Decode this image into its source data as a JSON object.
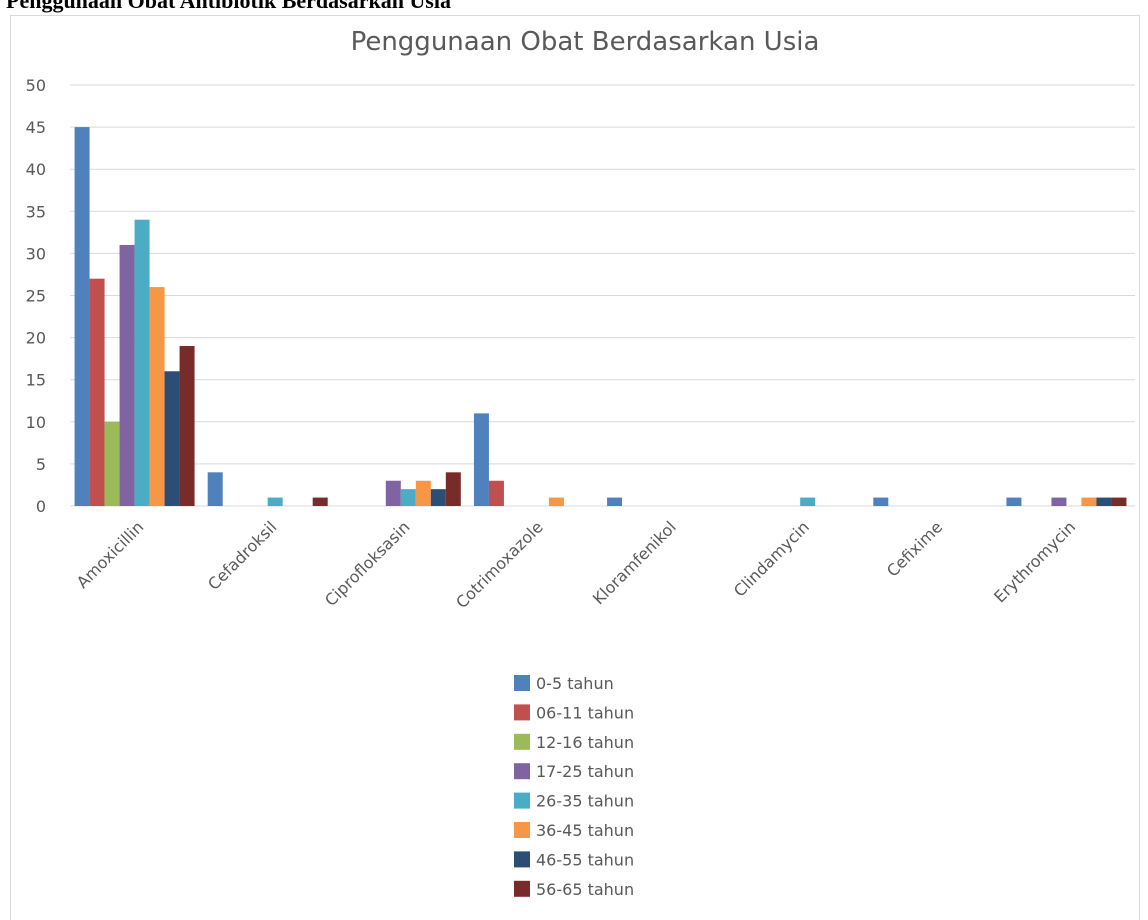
{
  "heading": "Penggunaan Obat Antibiotik Berdasarkan Usia",
  "chart_data": {
    "type": "bar",
    "title": "Penggunaan Obat Berdasarkan Usia",
    "categories": [
      "Amoxicillin",
      "Cefadroksil",
      "Ciprofloksasin",
      "Cotrimoxazole",
      "Kloramfenikol",
      "Clindamycin",
      "Cefixime",
      "Erythromycin"
    ],
    "series": [
      {
        "name": "0-5 tahun",
        "color": "#4f81bd",
        "values": [
          45,
          4,
          0,
          11,
          1,
          0,
          1,
          1
        ]
      },
      {
        "name": "06-11 tahun",
        "color": "#c0504d",
        "values": [
          27,
          0,
          0,
          3,
          0,
          0,
          0,
          0
        ]
      },
      {
        "name": "12-16 tahun",
        "color": "#9bbb59",
        "values": [
          10,
          0,
          0,
          0,
          0,
          0,
          0,
          0
        ]
      },
      {
        "name": "17-25 tahun",
        "color": "#8064a2",
        "values": [
          31,
          0,
          3,
          0,
          0,
          0,
          0,
          1
        ]
      },
      {
        "name": "26-35 tahun",
        "color": "#4bacc6",
        "values": [
          34,
          1,
          2,
          0,
          0,
          1,
          0,
          0
        ]
      },
      {
        "name": "36-45 tahun",
        "color": "#f79646",
        "values": [
          26,
          0,
          3,
          1,
          0,
          0,
          0,
          1
        ]
      },
      {
        "name": "46-55 tahun",
        "color": "#2c4d75",
        "values": [
          16,
          0,
          2,
          0,
          0,
          0,
          0,
          1
        ]
      },
      {
        "name": "56-65 tahun",
        "color": "#772c2a",
        "values": [
          19,
          1,
          4,
          0,
          0,
          0,
          0,
          1
        ]
      }
    ],
    "ylim": [
      0,
      50
    ],
    "yticks": [
      0,
      5,
      10,
      15,
      20,
      25,
      30,
      35,
      40,
      45,
      50
    ],
    "grid": true,
    "legend": "bottom"
  }
}
